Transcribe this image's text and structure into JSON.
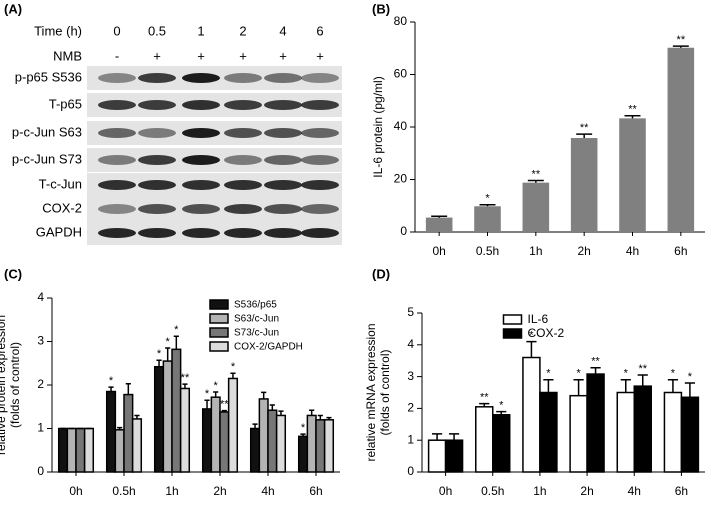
{
  "blot": {
    "panel": "(A)",
    "time_label": "Time (h)",
    "nmb_label": "NMB",
    "times": [
      "0",
      "0.5",
      "1",
      "2",
      "4",
      "6"
    ],
    "nmb": [
      "-",
      "+",
      "+",
      "+",
      "+",
      "+"
    ],
    "rows": [
      "p-p65 S536",
      "T-p65",
      "p-c-Jun S63",
      "p-c-Jun S73",
      "T-c-Jun",
      "COX-2",
      "GAPDH"
    ]
  },
  "chart_data": [
    {
      "type": "bar",
      "panel": "(B)",
      "ylabel": [
        "IL-6 protein (pg/ml)"
      ],
      "categories": [
        "0h",
        "0.5h",
        "1h",
        "2h",
        "4h",
        "6h"
      ],
      "values": [
        5.5,
        9.8,
        18.8,
        35.8,
        43.3,
        70.2
      ],
      "errors": [
        0.5,
        0.6,
        0.8,
        1.5,
        1,
        0.6
      ],
      "annotations": [
        null,
        "*",
        "**",
        "**",
        "**",
        "**"
      ],
      "color": "#808080",
      "ylim": [
        0,
        80
      ],
      "yticks": [
        0,
        20,
        40,
        60,
        80
      ]
    },
    {
      "type": "bar",
      "panel": "(C)",
      "ylabel": [
        "relative protein expression",
        "(folds of control)"
      ],
      "categories": [
        "0h",
        "0.5h",
        "1h",
        "2h",
        "4h",
        "6h"
      ],
      "legend": "upper right",
      "series": [
        {
          "name": "S536/p65",
          "color": "#111111",
          "values": [
            1,
            1.85,
            2.42,
            1.45,
            1.0,
            0.82
          ],
          "errors": [
            0,
            0.1,
            0.15,
            0.2,
            0.1,
            0.05
          ],
          "annotations": [
            null,
            "*",
            "*",
            "*",
            null,
            "*"
          ]
        },
        {
          "name": "S63/c-Jun",
          "color": "#b4b4b4",
          "values": [
            1,
            0.97,
            2.55,
            1.72,
            1.68,
            1.3
          ],
          "errors": [
            0,
            0.05,
            0.3,
            0.12,
            0.15,
            0.12
          ],
          "annotations": [
            null,
            null,
            "*",
            "*",
            null,
            null
          ]
        },
        {
          "name": "S73/c-Jun",
          "color": "#777777",
          "values": [
            1,
            1.78,
            2.82,
            1.38,
            1.42,
            1.2
          ],
          "errors": [
            0,
            0.25,
            0.3,
            0.03,
            0.12,
            0.1
          ],
          "annotations": [
            null,
            null,
            "*",
            "**",
            null,
            null
          ]
        },
        {
          "name": "COX-2/GAPDH",
          "color": "#dcdcdc",
          "values": [
            1,
            1.22,
            1.92,
            2.15,
            1.3,
            1.2
          ],
          "errors": [
            0,
            0.08,
            0.1,
            0.12,
            0.1,
            0.05
          ],
          "annotations": [
            null,
            null,
            "**",
            "*",
            null,
            null
          ]
        }
      ],
      "ylim": [
        0,
        4
      ],
      "yticks": [
        0,
        1,
        2,
        3,
        4
      ]
    },
    {
      "type": "bar",
      "panel": "(D)",
      "ylabel": [
        "relative mRNA expression",
        "(folds of control)"
      ],
      "categories": [
        "0h",
        "0.5h",
        "1h",
        "2h",
        "4h",
        "6h"
      ],
      "legend": "upper center",
      "series": [
        {
          "name": "IL-6",
          "color": "#ffffff",
          "values": [
            1,
            2.05,
            3.6,
            2.4,
            2.5,
            2.5
          ],
          "errors": [
            0.2,
            0.1,
            0.5,
            0.5,
            0.4,
            0.4
          ],
          "annotations": [
            null,
            "**",
            "*",
            "*",
            "*",
            "*"
          ]
        },
        {
          "name": "COX-2",
          "color": "#000000",
          "values": [
            1,
            1.8,
            2.5,
            3.08,
            2.7,
            2.35
          ],
          "errors": [
            0.2,
            0.1,
            0.4,
            0.2,
            0.35,
            0.45
          ],
          "annotations": [
            null,
            "*",
            "*",
            "**",
            "**",
            "*"
          ]
        }
      ],
      "ylim": [
        0,
        5
      ],
      "yticks": [
        0,
        1,
        2,
        3,
        4,
        5
      ]
    }
  ]
}
